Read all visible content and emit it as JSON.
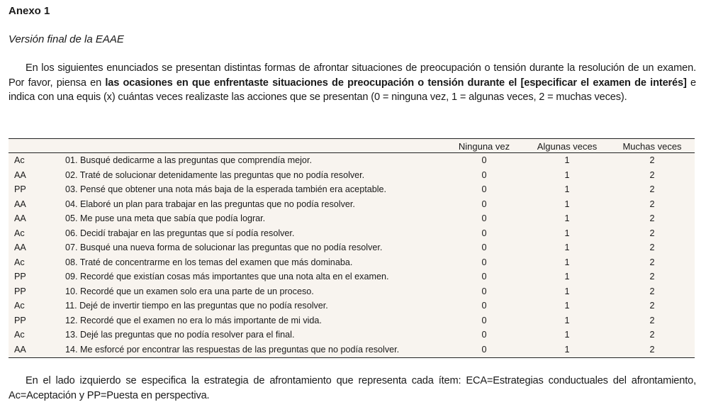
{
  "heading": "Anexo 1",
  "subheading": "Versión final de la EAAE",
  "intro": {
    "part1": "En los siguientes enunciados se presentan distintas formas de afrontar situaciones de preocupación o tensión durante la resolución de un examen. Por favor, piensa en ",
    "bold": "las ocasiones en que enfrentaste situaciones de preocupación o tensión durante el [especificar el examen de interés]",
    "part2": " e indica con una equis (x) cuántas veces realizaste las acciones que se presentan (0 = ninguna vez, 1 = algunas veces, 2 = muchas veces)."
  },
  "table": {
    "headers": [
      "Ninguna vez",
      "Algunas veces",
      "Muchas veces"
    ],
    "rows": [
      {
        "code": "Ac",
        "item": "01. Busqué dedicarme a las preguntas que comprendía mejor.",
        "a": "0",
        "b": "1",
        "c": "2"
      },
      {
        "code": "AA",
        "item": "02. Traté de solucionar detenidamente las preguntas que no podía resolver.",
        "a": "0",
        "b": "1",
        "c": "2"
      },
      {
        "code": "PP",
        "item": "03. Pensé que obtener una nota más baja de la esperada también era aceptable.",
        "a": "0",
        "b": "1",
        "c": "2"
      },
      {
        "code": "AA",
        "item": "04. Elaboré un plan para trabajar en las preguntas que no podía resolver.",
        "a": "0",
        "b": "1",
        "c": "2"
      },
      {
        "code": "AA",
        "item": "05. Me puse una meta que sabía que podía lograr.",
        "a": "0",
        "b": "1",
        "c": "2"
      },
      {
        "code": "Ac",
        "item": "06. Decidí trabajar en las preguntas que sí podía resolver.",
        "a": "0",
        "b": "1",
        "c": "2"
      },
      {
        "code": "AA",
        "item": "07. Busqué una nueva forma de solucionar las preguntas que no podía resolver.",
        "a": "0",
        "b": "1",
        "c": "2"
      },
      {
        "code": "Ac",
        "item": "08. Traté de concentrarme en los temas del examen que más dominaba.",
        "a": "0",
        "b": "1",
        "c": "2"
      },
      {
        "code": "PP",
        "item": "09. Recordé que existían cosas más importantes que una nota alta en el examen.",
        "a": "0",
        "b": "1",
        "c": "2"
      },
      {
        "code": "PP",
        "item": "10. Recordé que un examen solo era una parte de un proceso.",
        "a": "0",
        "b": "1",
        "c": "2"
      },
      {
        "code": "Ac",
        "item": "11. Dejé de invertir tiempo en las preguntas que no podía resolver.",
        "a": "0",
        "b": "1",
        "c": "2"
      },
      {
        "code": "PP",
        "item": "12. Recordé que el examen no era lo más importante de mi vida.",
        "a": "0",
        "b": "1",
        "c": "2"
      },
      {
        "code": "Ac",
        "item": "13. Dejé las preguntas que no podía resolver para el final.",
        "a": "0",
        "b": "1",
        "c": "2"
      },
      {
        "code": "AA",
        "item": "14. Me esforcé por encontrar las respuestas de las preguntas que no podía resolver.",
        "a": "0",
        "b": "1",
        "c": "2"
      }
    ]
  },
  "footnote": "En el lado izquierdo se especifica la estrategia de afrontamiento que representa cada ítem: ECA=Estrategias conductuales del afrontamiento, Ac=Aceptación y PP=Puesta en perspectiva."
}
